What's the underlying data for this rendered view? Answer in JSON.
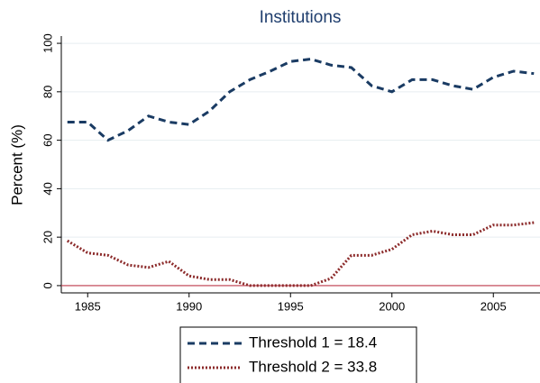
{
  "chart_data": {
    "type": "line",
    "title": "Institutions",
    "y_label": "Percent (%)",
    "x": [
      1984,
      1985,
      1986,
      1987,
      1988,
      1989,
      1990,
      1991,
      1992,
      1993,
      1994,
      1995,
      1996,
      1997,
      1998,
      1999,
      2000,
      2001,
      2002,
      2003,
      2004,
      2005,
      2006,
      2007
    ],
    "series": [
      {
        "name": "Threshold 1 = 18.4",
        "color": "#1a3b63",
        "dash": "8,5",
        "values": [
          67.5,
          67.5,
          60,
          64,
          70,
          67.5,
          66.5,
          72,
          80,
          85,
          88.5,
          92.5,
          93.5,
          91,
          90,
          82.5,
          80,
          85,
          85,
          82.5,
          81,
          86,
          88.5,
          87.5
        ]
      },
      {
        "name": "Threshold 2 = 33.8",
        "color": "#8c2b2b",
        "dash": "2,2",
        "values": [
          18.5,
          13.5,
          12.5,
          8.5,
          7.5,
          10,
          4,
          2.5,
          2.5,
          0,
          0,
          0,
          0,
          3,
          12.5,
          12.5,
          15,
          21,
          22.5,
          21,
          21,
          25,
          25,
          26
        ]
      }
    ],
    "xlim": [
      1983.7,
      2007.3
    ],
    "xticks": [
      1985,
      1990,
      1995,
      2000,
      2005
    ],
    "ylim": [
      -3,
      103
    ],
    "yticks": [
      0,
      20,
      40,
      60,
      80,
      100
    ],
    "grid": true,
    "hline": {
      "value": 0,
      "color": "#c0394b"
    },
    "legend": "bottom"
  }
}
